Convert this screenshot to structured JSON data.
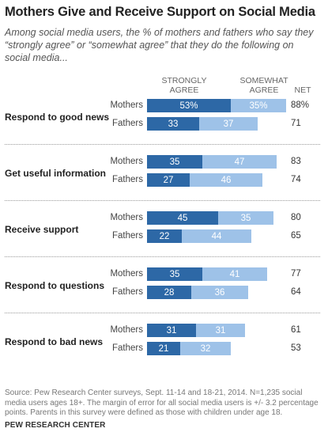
{
  "title": "Mothers Give and Receive Support on Social Media",
  "subtitle": "Among social media users, the % of mothers and fathers who say they “strongly agree” or “somewhat agree” that they do the following on social media...",
  "column_headers": {
    "strongly_agree": "STRONGLY AGREE",
    "somewhat_agree": "SOMEWHAT AGREE",
    "net": "NET"
  },
  "colors": {
    "strongly_agree": "#2d68a6",
    "somewhat_agree": "#9ec2e8"
  },
  "chart_data": {
    "type": "bar",
    "orientation": "horizontal",
    "stacked": true,
    "title": "Mothers Give and Receive Support on Social Media",
    "groups": [
      {
        "category": "Respond to good news",
        "rows": [
          {
            "label": "Mothers",
            "strongly_agree": 53,
            "somewhat_agree": 35,
            "net": 88,
            "strongly_label": "53%",
            "somewhat_label": "35%",
            "net_label": "88%"
          },
          {
            "label": "Fathers",
            "strongly_agree": 33,
            "somewhat_agree": 37,
            "net": 71,
            "strongly_label": "33",
            "somewhat_label": "37",
            "net_label": "71"
          }
        ]
      },
      {
        "category": "Get useful information",
        "rows": [
          {
            "label": "Mothers",
            "strongly_agree": 35,
            "somewhat_agree": 47,
            "net": 83,
            "strongly_label": "35",
            "somewhat_label": "47",
            "net_label": "83"
          },
          {
            "label": "Fathers",
            "strongly_agree": 27,
            "somewhat_agree": 46,
            "net": 74,
            "strongly_label": "27",
            "somewhat_label": "46",
            "net_label": "74"
          }
        ]
      },
      {
        "category": "Receive support",
        "rows": [
          {
            "label": "Mothers",
            "strongly_agree": 45,
            "somewhat_agree": 35,
            "net": 80,
            "strongly_label": "45",
            "somewhat_label": "35",
            "net_label": "80"
          },
          {
            "label": "Fathers",
            "strongly_agree": 22,
            "somewhat_agree": 44,
            "net": 65,
            "strongly_label": "22",
            "somewhat_label": "44",
            "net_label": "65"
          }
        ]
      },
      {
        "category": "Respond to questions",
        "rows": [
          {
            "label": "Mothers",
            "strongly_agree": 35,
            "somewhat_agree": 41,
            "net": 77,
            "strongly_label": "35",
            "somewhat_label": "41",
            "net_label": "77"
          },
          {
            "label": "Fathers",
            "strongly_agree": 28,
            "somewhat_agree": 36,
            "net": 64,
            "strongly_label": "28",
            "somewhat_label": "36",
            "net_label": "64"
          }
        ]
      },
      {
        "category": "Respond to bad news",
        "rows": [
          {
            "label": "Mothers",
            "strongly_agree": 31,
            "somewhat_agree": 31,
            "net": 61,
            "strongly_label": "31",
            "somewhat_label": "31",
            "net_label": "61"
          },
          {
            "label": "Fathers",
            "strongly_agree": 21,
            "somewhat_agree": 32,
            "net": 53,
            "strongly_label": "21",
            "somewhat_label": "32",
            "net_label": "53"
          }
        ]
      }
    ]
  },
  "source": "Source: Pew Research Center surveys, Sept. 11-14 and 18-21, 2014. N=1,235 social media users ages 18+. The margin of error for all social media users is +/- 3.2 percentage points. Parents in this survey were defined as those with children under age 18.",
  "organization": "PEW RESEARCH CENTER"
}
